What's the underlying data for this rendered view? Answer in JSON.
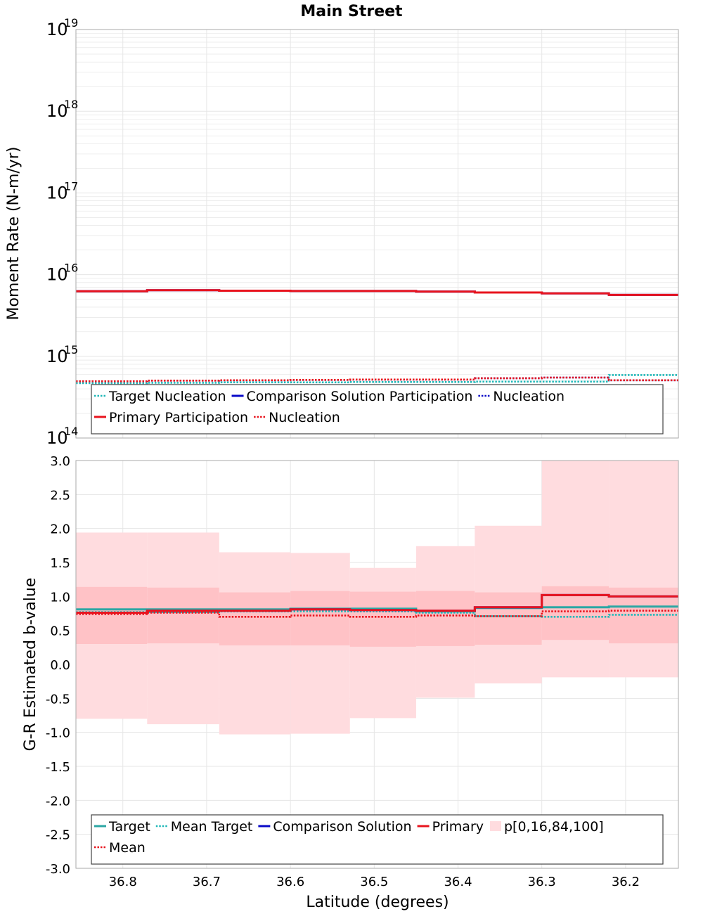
{
  "title": "Main Street",
  "colors": {
    "target": "#2ca7a4",
    "mean_target": "#20b8b8",
    "comparison": "#0a0ac8",
    "primary": "#e8141e",
    "band_outer": "#ffdcdf",
    "band_inner": "#ffc2c6",
    "grid": "#e6e6e6"
  },
  "chart_data": [
    {
      "type": "line",
      "subtype": "step",
      "title": "Main Street",
      "xlabel": "",
      "ylabel": "Moment Rate (N-m/yr)",
      "yscale": "log",
      "ylim": [
        100000000000000.0,
        1e+19
      ],
      "xlim": [
        36.856,
        36.137
      ],
      "x_edges": [
        36.856,
        36.771,
        36.685,
        36.6,
        36.529,
        36.45,
        36.38,
        36.3,
        36.22,
        36.137
      ],
      "yticks": [
        {
          "base": "10",
          "exp": "14"
        },
        {
          "base": "10",
          "exp": "15"
        },
        {
          "base": "10",
          "exp": "16"
        },
        {
          "base": "10",
          "exp": "17"
        },
        {
          "base": "10",
          "exp": "18"
        },
        {
          "base": "10",
          "exp": "19"
        }
      ],
      "series": [
        {
          "name": "Target Nucleation",
          "style": "dotted",
          "color_key": "mean_target",
          "values": [
            470000000000000.0,
            475000000000000.0,
            480000000000000.0,
            480000000000000.0,
            485000000000000.0,
            485000000000000.0,
            490000000000000.0,
            490000000000000.0,
            590000000000000.0
          ]
        },
        {
          "name": "Comparison Solution Participation",
          "style": "solid",
          "color_key": "comparison",
          "values": [
            6250000000000000.0,
            6450000000000000.0,
            6350000000000000.0,
            6300000000000000.0,
            6300000000000000.0,
            6200000000000000.0,
            6050000000000000.0,
            5900000000000000.0,
            5650000000000000.0
          ]
        },
        {
          "name": "Nucleation",
          "style": "dotted",
          "color_key": "comparison",
          "values": [
            495000000000000.0,
            505000000000000.0,
            510000000000000.0,
            515000000000000.0,
            520000000000000.0,
            520000000000000.0,
            540000000000000.0,
            550000000000000.0,
            510000000000000.0
          ]
        },
        {
          "name": "Primary Participation",
          "style": "solid",
          "color_key": "primary",
          "values": [
            6250000000000000.0,
            6450000000000000.0,
            6350000000000000.0,
            6300000000000000.0,
            6300000000000000.0,
            6200000000000000.0,
            6050000000000000.0,
            5900000000000000.0,
            5650000000000000.0
          ]
        },
        {
          "name": "Nucleation",
          "style": "dotted",
          "color_key": "primary",
          "values": [
            495000000000000.0,
            505000000000000.0,
            510000000000000.0,
            515000000000000.0,
            520000000000000.0,
            520000000000000.0,
            540000000000000.0,
            550000000000000.0,
            510000000000000.0
          ]
        }
      ],
      "legend": {
        "placement": "bottom",
        "rows": [
          [
            {
              "label": "Target Nucleation",
              "style": "dotted",
              "color_key": "mean_target"
            },
            {
              "label": "Comparison Solution Participation",
              "style": "solid",
              "color_key": "comparison"
            },
            {
              "label": "Nucleation",
              "style": "dotted",
              "color_key": "comparison"
            }
          ],
          [
            {
              "label": "Primary Participation",
              "style": "solid",
              "color_key": "primary"
            },
            {
              "label": "Nucleation",
              "style": "dotted",
              "color_key": "primary"
            }
          ]
        ]
      }
    },
    {
      "type": "line",
      "subtype": "step",
      "title": "",
      "xlabel": "Latitude (degrees)",
      "ylabel": "G-R Estimated b-value",
      "yscale": "linear",
      "ylim": [
        -3.0,
        3.0
      ],
      "xlim": [
        36.856,
        36.137
      ],
      "x_edges": [
        36.856,
        36.771,
        36.685,
        36.6,
        36.529,
        36.45,
        36.38,
        36.3,
        36.22,
        36.137
      ],
      "xticks": [
        {
          "value": 36.8,
          "label": "36.8"
        },
        {
          "value": 36.7,
          "label": "36.7"
        },
        {
          "value": 36.6,
          "label": "36.6"
        },
        {
          "value": 36.5,
          "label": "36.5"
        },
        {
          "value": 36.4,
          "label": "36.4"
        },
        {
          "value": 36.3,
          "label": "36.3"
        },
        {
          "value": 36.2,
          "label": "36.2"
        }
      ],
      "yticks": [
        {
          "value": 3.0,
          "label": "3.0"
        },
        {
          "value": 2.5,
          "label": "2.5"
        },
        {
          "value": 2.0,
          "label": "2.0"
        },
        {
          "value": 1.5,
          "label": "1.5"
        },
        {
          "value": 1.0,
          "label": "1.0"
        },
        {
          "value": 0.5,
          "label": "0.5"
        },
        {
          "value": 0.0,
          "label": "0.0"
        },
        {
          "value": -0.5,
          "label": "-0.5"
        },
        {
          "value": -1.0,
          "label": "-1.0"
        },
        {
          "value": -1.5,
          "label": "-1.5"
        },
        {
          "value": -2.0,
          "label": "-2.0"
        },
        {
          "value": -2.5,
          "label": "-2.5"
        },
        {
          "value": -3.0,
          "label": "-3.0"
        }
      ],
      "bands": {
        "name": "p[0,16,84,100]",
        "p0": [
          -0.8,
          -0.88,
          -1.03,
          -1.02,
          -0.79,
          -0.49,
          -0.28,
          -0.19,
          -0.19
        ],
        "p16": [
          0.3,
          0.31,
          0.28,
          0.28,
          0.26,
          0.27,
          0.29,
          0.36,
          0.31
        ],
        "p84": [
          1.14,
          1.13,
          1.06,
          1.08,
          1.07,
          1.08,
          1.06,
          1.15,
          1.13
        ],
        "p100": [
          1.94,
          1.94,
          1.65,
          1.64,
          1.42,
          1.74,
          2.04,
          3.0,
          3.0
        ]
      },
      "series": [
        {
          "name": "Target",
          "style": "solid",
          "color_key": "target",
          "values": [
            0.81,
            0.81,
            0.81,
            0.82,
            0.82,
            0.78,
            0.83,
            0.84,
            0.85
          ]
        },
        {
          "name": "Mean Target",
          "style": "dotted",
          "color_key": "mean_target",
          "values": [
            0.77,
            0.77,
            0.78,
            0.78,
            0.78,
            0.76,
            0.71,
            0.7,
            0.73
          ]
        },
        {
          "name": "Comparison Solution",
          "style": "solid",
          "color_key": "comparison",
          "values": [
            0.76,
            0.79,
            0.79,
            0.81,
            0.8,
            0.79,
            0.84,
            1.02,
            1.0
          ]
        },
        {
          "name": "Primary",
          "style": "solid",
          "color_key": "primary",
          "values": [
            0.76,
            0.79,
            0.79,
            0.81,
            0.8,
            0.79,
            0.84,
            1.02,
            1.0
          ]
        },
        {
          "name": "Mean",
          "style": "dotted",
          "color_key": "primary",
          "values": [
            0.74,
            0.76,
            0.7,
            0.72,
            0.7,
            0.72,
            0.71,
            0.78,
            0.79
          ]
        }
      ],
      "legend": {
        "placement": "bottom",
        "rows": [
          [
            {
              "label": "Target",
              "style": "solid",
              "color_key": "target"
            },
            {
              "label": "Mean Target",
              "style": "dotted",
              "color_key": "mean_target"
            },
            {
              "label": "Comparison Solution",
              "style": "solid",
              "color_key": "comparison"
            },
            {
              "label": "Primary",
              "style": "solid",
              "color_key": "primary"
            },
            {
              "label": "p[0,16,84,100]",
              "style": "patch",
              "color_key": "band_outer"
            }
          ],
          [
            {
              "label": "Mean",
              "style": "dotted",
              "color_key": "primary"
            }
          ]
        ]
      }
    }
  ]
}
